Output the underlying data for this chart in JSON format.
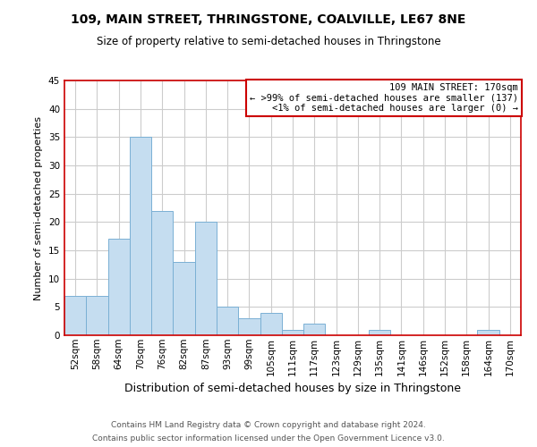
{
  "title": "109, MAIN STREET, THRINGSTONE, COALVILLE, LE67 8NE",
  "subtitle": "Size of property relative to semi-detached houses in Thringstone",
  "xlabel": "Distribution of semi-detached houses by size in Thringstone",
  "ylabel": "Number of semi-detached properties",
  "bin_labels": [
    "52sqm",
    "58sqm",
    "64sqm",
    "70sqm",
    "76sqm",
    "82sqm",
    "87sqm",
    "93sqm",
    "99sqm",
    "105sqm",
    "111sqm",
    "117sqm",
    "123sqm",
    "129sqm",
    "135sqm",
    "141sqm",
    "146sqm",
    "152sqm",
    "158sqm",
    "164sqm",
    "170sqm"
  ],
  "bar_heights": [
    7,
    7,
    17,
    35,
    22,
    13,
    20,
    5,
    3,
    4,
    1,
    2,
    0,
    0,
    1,
    0,
    0,
    0,
    0,
    1,
    0
  ],
  "bar_color": "#c5ddf0",
  "bar_edge_color": "#7ab0d4",
  "box_edge_color": "#cc0000",
  "ylim": [
    0,
    45
  ],
  "yticks": [
    0,
    5,
    10,
    15,
    20,
    25,
    30,
    35,
    40,
    45
  ],
  "legend_title": "109 MAIN STREET: 170sqm",
  "legend_line1": "← >99% of semi-detached houses are smaller (137)",
  "legend_line2": "<1% of semi-detached houses are larger (0) →",
  "footer_line1": "Contains HM Land Registry data © Crown copyright and database right 2024.",
  "footer_line2": "Contains public sector information licensed under the Open Government Licence v3.0.",
  "background_color": "#ffffff",
  "grid_color": "#cccccc",
  "spine_color": "#cc0000",
  "title_fontsize": 10,
  "subtitle_fontsize": 8.5,
  "xlabel_fontsize": 9,
  "ylabel_fontsize": 8,
  "tick_fontsize": 7.5,
  "footer_fontsize": 6.5
}
